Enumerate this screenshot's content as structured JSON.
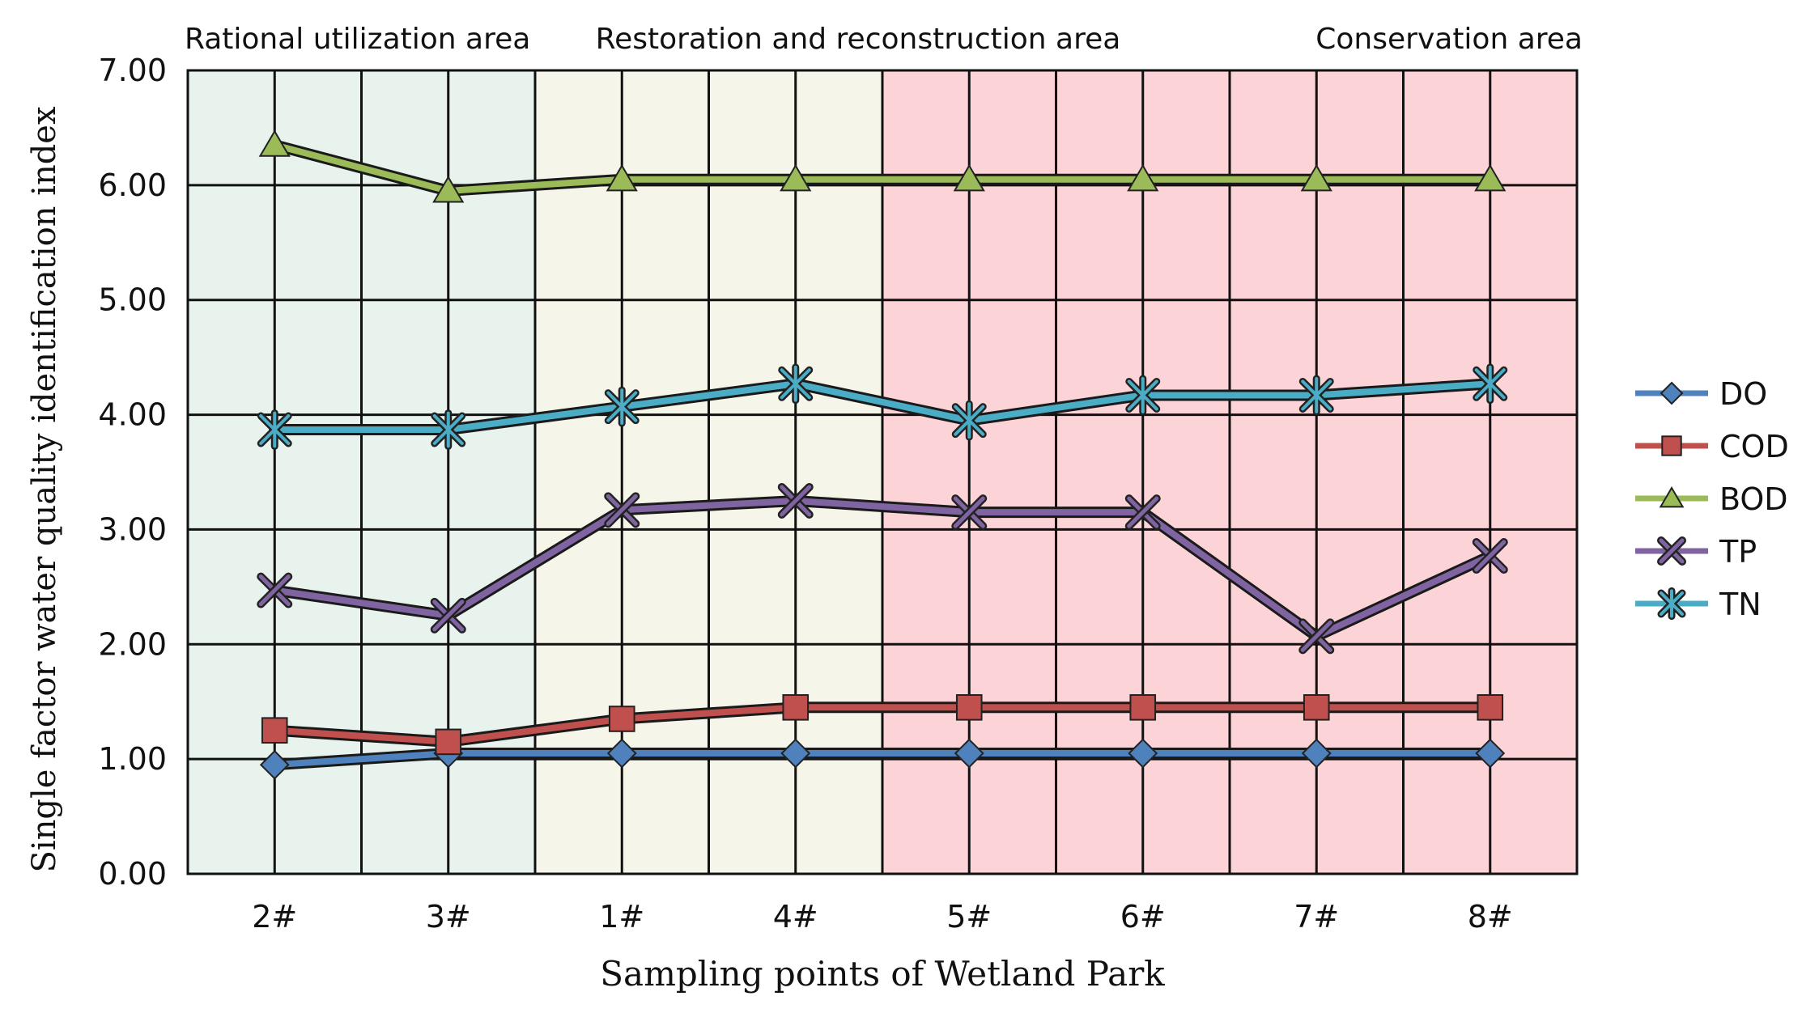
{
  "chart_data": {
    "type": "line",
    "xlabel": "Sampling points of Wetland Park",
    "ylabel": "Single factor water quality identification index",
    "categories": [
      "2#",
      "3#",
      "1#",
      "4#",
      "5#",
      "6#",
      "7#",
      "8#"
    ],
    "ylim": [
      0,
      7
    ],
    "yticks": [
      "0.00",
      "1.00",
      "2.00",
      "3.00",
      "4.00",
      "5.00",
      "6.00",
      "7.00"
    ],
    "grid": true,
    "legend_position": "right",
    "zones": [
      {
        "label": "Rational utilization area",
        "from_index": 0,
        "to_index": 1,
        "color": "#e8f3ee"
      },
      {
        "label": "Restoration and reconstruction area",
        "from_index": 2,
        "to_index": 3,
        "color": "#f6f5e9"
      },
      {
        "label": "Conservation area",
        "from_index": 4,
        "to_index": 7,
        "color": "#fcd3d6"
      }
    ],
    "series": [
      {
        "name": "DO",
        "values": [
          0.95,
          1.05,
          1.05,
          1.05,
          1.05,
          1.05,
          1.05,
          1.05
        ],
        "color": "#4f81bd",
        "marker": "diamond"
      },
      {
        "name": "COD",
        "values": [
          1.25,
          1.15,
          1.35,
          1.45,
          1.45,
          1.45,
          1.45,
          1.45
        ],
        "color": "#c0504d",
        "marker": "square"
      },
      {
        "name": "BOD",
        "values": [
          6.35,
          5.95,
          6.05,
          6.05,
          6.05,
          6.05,
          6.05,
          6.05
        ],
        "color": "#9bbb59",
        "marker": "triangle"
      },
      {
        "name": "TP",
        "values": [
          2.47,
          2.25,
          3.17,
          3.25,
          3.15,
          3.15,
          2.07,
          2.77
        ],
        "color": "#8064a2",
        "marker": "x"
      },
      {
        "name": "TN",
        "values": [
          3.87,
          3.87,
          4.07,
          4.27,
          3.95,
          4.17,
          4.17,
          4.27
        ],
        "color": "#4bacc6",
        "marker": "star"
      }
    ]
  }
}
